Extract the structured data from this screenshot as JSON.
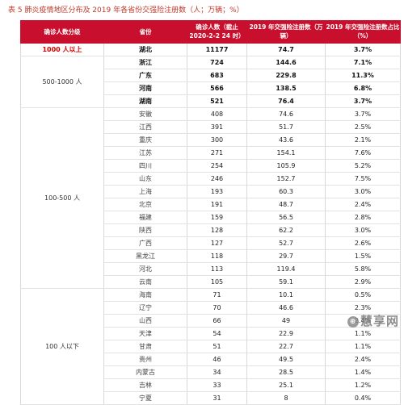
{
  "title": "表 5 肺炎疫情地区分布及 2019 年各省份交强险注册数（人；万辆；%）",
  "headers": [
    "确诊人数分级",
    "省份",
    "确诊人数（截止 2020-2-2 24 时）",
    "2019 年交强险注册数（万辆）",
    "2019 年交强险注册数占比（%）"
  ],
  "groups": [
    {
      "label": "1000 人以上",
      "strong": true,
      "rows": [
        {
          "province": "湖北",
          "cases": "11177",
          "registrations": "74.7",
          "share": "3.7%"
        }
      ]
    },
    {
      "label": "500-1000 人",
      "strong": false,
      "rows": [
        {
          "province": "浙江",
          "cases": "724",
          "registrations": "144.6",
          "share": "7.1%"
        },
        {
          "province": "广东",
          "cases": "683",
          "registrations": "229.8",
          "share": "11.3%"
        },
        {
          "province": "河南",
          "cases": "566",
          "registrations": "138.5",
          "share": "6.8%"
        },
        {
          "province": "湖南",
          "cases": "521",
          "registrations": "76.4",
          "share": "3.7%"
        }
      ]
    },
    {
      "label": "100-500 人",
      "strong": false,
      "rows": [
        {
          "province": "安徽",
          "cases": "408",
          "registrations": "74.6",
          "share": "3.7%"
        },
        {
          "province": "江西",
          "cases": "391",
          "registrations": "51.7",
          "share": "2.5%"
        },
        {
          "province": "重庆",
          "cases": "300",
          "registrations": "43.6",
          "share": "2.1%"
        },
        {
          "province": "江苏",
          "cases": "271",
          "registrations": "154.1",
          "share": "7.6%"
        },
        {
          "province": "四川",
          "cases": "254",
          "registrations": "105.9",
          "share": "5.2%"
        },
        {
          "province": "山东",
          "cases": "246",
          "registrations": "152.7",
          "share": "7.5%"
        },
        {
          "province": "上海",
          "cases": "193",
          "registrations": "60.3",
          "share": "3.0%"
        },
        {
          "province": "北京",
          "cases": "191",
          "registrations": "48.7",
          "share": "2.4%"
        },
        {
          "province": "福建",
          "cases": "159",
          "registrations": "56.5",
          "share": "2.8%"
        },
        {
          "province": "陕西",
          "cases": "128",
          "registrations": "62.2",
          "share": "3.0%"
        },
        {
          "province": "广西",
          "cases": "127",
          "registrations": "52.7",
          "share": "2.6%"
        },
        {
          "province": "黑龙江",
          "cases": "118",
          "registrations": "29.7",
          "share": "1.5%"
        },
        {
          "province": "河北",
          "cases": "113",
          "registrations": "119.4",
          "share": "5.8%"
        },
        {
          "province": "云南",
          "cases": "105",
          "registrations": "59.1",
          "share": "2.9%"
        }
      ]
    },
    {
      "label": "100 人以下",
      "strong": false,
      "rows": [
        {
          "province": "海南",
          "cases": "71",
          "registrations": "10.1",
          "share": "0.5%"
        },
        {
          "province": "辽宁",
          "cases": "70",
          "registrations": "46.6",
          "share": "2.3%"
        },
        {
          "province": "山西",
          "cases": "66",
          "registrations": "49",
          "share": "2.4%"
        },
        {
          "province": "天津",
          "cases": "54",
          "registrations": "22.9",
          "share": "1.1%"
        },
        {
          "province": "甘肃",
          "cases": "51",
          "registrations": "22.7",
          "share": "1.1%"
        },
        {
          "province": "贵州",
          "cases": "46",
          "registrations": "49.5",
          "share": "2.4%"
        },
        {
          "province": "内蒙古",
          "cases": "34",
          "registrations": "28.5",
          "share": "1.4%"
        },
        {
          "province": "吉林",
          "cases": "33",
          "registrations": "25.1",
          "share": "1.2%"
        },
        {
          "province": "宁夏",
          "cases": "31",
          "registrations": "8",
          "share": "0.4%"
        }
      ]
    }
  ],
  "watermark": "慧享网"
}
